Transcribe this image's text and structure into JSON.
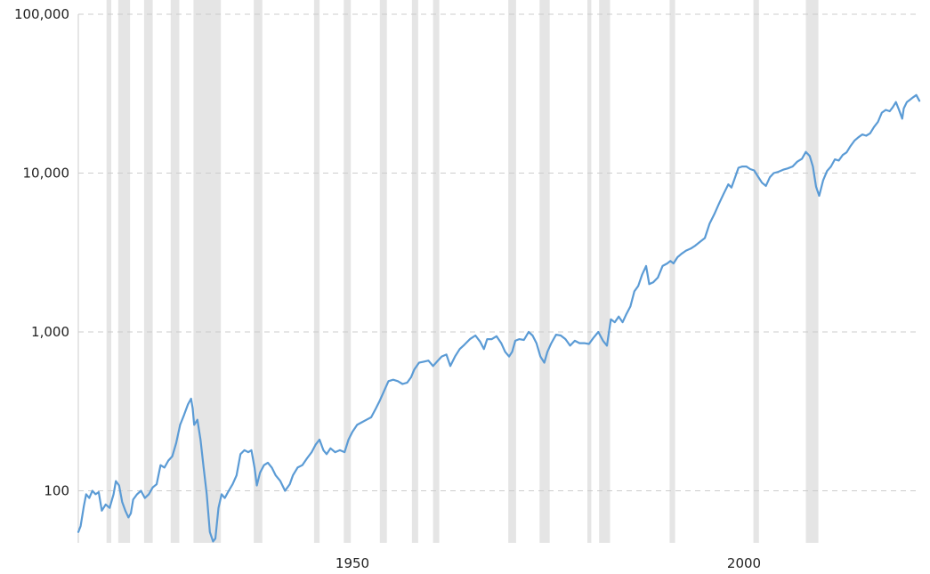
{
  "chart_data": {
    "type": "line",
    "title": "",
    "xlabel": "",
    "ylabel": "",
    "y_scale": "log",
    "ylim": [
      47,
      100000
    ],
    "xlim": [
      1915.0,
      2022.5
    ],
    "y_ticks": [
      100,
      1000,
      10000,
      100000
    ],
    "y_tick_labels": [
      "100",
      "1,000",
      "10,000",
      "100,000"
    ],
    "x_ticks": [
      1950,
      2000
    ],
    "x_tick_labels": [
      "1950",
      "2000"
    ],
    "grid": true,
    "legend": "none",
    "colors": {
      "line": "#5b9bd5",
      "recession": "#e5e5e5",
      "grid": "#cccccc"
    },
    "recessions": [
      [
        1918.6,
        1919.2
      ],
      [
        1920.1,
        1921.6
      ],
      [
        1923.4,
        1924.5
      ],
      [
        1926.8,
        1927.9
      ],
      [
        1929.7,
        1933.2
      ],
      [
        1937.4,
        1938.5
      ],
      [
        1945.1,
        1945.8
      ],
      [
        1948.9,
        1949.8
      ],
      [
        1953.5,
        1954.4
      ],
      [
        1957.6,
        1958.4
      ],
      [
        1960.3,
        1961.1
      ],
      [
        1969.9,
        1970.9
      ],
      [
        1973.9,
        1975.2
      ],
      [
        1980.0,
        1980.5
      ],
      [
        1981.5,
        1982.9
      ],
      [
        1990.5,
        1991.2
      ],
      [
        2001.2,
        2001.9
      ],
      [
        2007.9,
        2009.5
      ]
    ],
    "series": [
      {
        "x": [
          1915.0,
          1915.3,
          1915.7,
          1916.0,
          1916.4,
          1916.8,
          1917.2,
          1917.6,
          1918.0,
          1918.5,
          1919.0,
          1919.5,
          1919.8,
          1920.2,
          1920.6,
          1921.0,
          1921.4,
          1921.7,
          1922.0,
          1922.5,
          1923.0,
          1923.5,
          1924.0,
          1924.5,
          1925.0,
          1925.5,
          1926.0,
          1926.5,
          1927.0,
          1927.5,
          1928.0,
          1928.5,
          1929.0,
          1929.4,
          1929.6,
          1929.8,
          1930.2,
          1930.6,
          1931.0,
          1931.4,
          1931.8,
          1932.2,
          1932.5,
          1932.9,
          1933.3,
          1933.7,
          1934.2,
          1934.7,
          1935.2,
          1935.7,
          1936.2,
          1936.7,
          1937.1,
          1937.5,
          1937.8,
          1938.2,
          1938.7,
          1939.2,
          1939.7,
          1940.2,
          1940.8,
          1941.4,
          1942.0,
          1942.4,
          1943.0,
          1943.6,
          1944.2,
          1944.8,
          1945.3,
          1945.8,
          1946.3,
          1946.7,
          1947.2,
          1947.8,
          1948.4,
          1949.0,
          1949.5,
          1950.0,
          1950.6,
          1951.2,
          1951.8,
          1952.4,
          1953.0,
          1953.5,
          1954.0,
          1954.6,
          1955.2,
          1955.8,
          1956.4,
          1957.0,
          1957.5,
          1957.9,
          1958.5,
          1959.1,
          1959.7,
          1960.3,
          1960.8,
          1961.4,
          1962.0,
          1962.5,
          1963.1,
          1963.7,
          1964.3,
          1965.0,
          1965.7,
          1966.3,
          1966.8,
          1967.2,
          1967.8,
          1968.4,
          1969.0,
          1969.5,
          1970.0,
          1970.4,
          1970.8,
          1971.3,
          1971.9,
          1972.5,
          1973.0,
          1973.5,
          1974.0,
          1974.5,
          1974.9,
          1975.4,
          1976.0,
          1976.6,
          1977.2,
          1977.8,
          1978.4,
          1979.0,
          1979.6,
          1980.2,
          1980.8,
          1981.4,
          1982.0,
          1982.5,
          1983.0,
          1983.5,
          1984.0,
          1984.5,
          1985.0,
          1985.5,
          1986.0,
          1986.5,
          1987.0,
          1987.5,
          1987.9,
          1988.4,
          1989.0,
          1989.6,
          1990.2,
          1990.6,
          1991.0,
          1991.5,
          1992.0,
          1992.6,
          1993.2,
          1993.8,
          1994.4,
          1995.0,
          1995.6,
          1996.2,
          1996.8,
          1997.4,
          1998.0,
          1998.4,
          1998.8,
          1999.3,
          1999.8,
          2000.3,
          2000.8,
          2001.3,
          2001.8,
          2002.3,
          2002.8,
          2003.3,
          2003.8,
          2004.4,
          2005.0,
          2005.6,
          2006.2,
          2006.8,
          2007.4,
          2007.9,
          2008.4,
          2008.8,
          2009.2,
          2009.6,
          2010.1,
          2010.6,
          2011.1,
          2011.6,
          2012.1,
          2012.6,
          2013.1,
          2013.6,
          2014.1,
          2014.6,
          2015.1,
          2015.6,
          2016.1,
          2016.6,
          2017.1,
          2017.6,
          2018.1,
          2018.6,
          2019.0,
          2019.4,
          2019.8,
          2020.2,
          2020.4,
          2020.8,
          2021.2,
          2021.6,
          2022.0,
          2022.4
        ],
        "values": [
          55,
          60,
          80,
          95,
          90,
          100,
          95,
          98,
          75,
          82,
          78,
          95,
          115,
          108,
          85,
          75,
          68,
          72,
          88,
          95,
          100,
          90,
          95,
          105,
          110,
          145,
          140,
          155,
          165,
          200,
          260,
          300,
          350,
          380,
          330,
          260,
          280,
          210,
          140,
          95,
          55,
          48,
          50,
          78,
          95,
          90,
          100,
          110,
          125,
          170,
          180,
          175,
          180,
          140,
          108,
          130,
          145,
          150,
          140,
          125,
          115,
          100,
          110,
          125,
          140,
          145,
          160,
          175,
          195,
          210,
          180,
          170,
          185,
          175,
          180,
          175,
          210,
          235,
          260,
          270,
          280,
          290,
          330,
          370,
          420,
          490,
          500,
          490,
          470,
          480,
          520,
          580,
          640,
          650,
          660,
          610,
          650,
          700,
          720,
          610,
          700,
          780,
          830,
          900,
          950,
          870,
          780,
          900,
          900,
          940,
          850,
          750,
          700,
          750,
          880,
          900,
          890,
          1000,
          950,
          850,
          700,
          640,
          750,
          850,
          960,
          950,
          900,
          820,
          880,
          850,
          850,
          840,
          920,
          1000,
          880,
          820,
          1200,
          1150,
          1250,
          1150,
          1300,
          1450,
          1800,
          1950,
          2300,
          2600,
          2000,
          2050,
          2200,
          2600,
          2700,
          2800,
          2700,
          2950,
          3100,
          3250,
          3350,
          3500,
          3700,
          3900,
          4800,
          5500,
          6400,
          7400,
          8500,
          8100,
          9200,
          10800,
          11000,
          11000,
          10600,
          10400,
          9500,
          8700,
          8300,
          9400,
          10000,
          10200,
          10500,
          10700,
          11000,
          11800,
          12300,
          13600,
          12800,
          11000,
          8200,
          7200,
          9000,
          10300,
          11000,
          12200,
          12000,
          13000,
          13500,
          14800,
          16000,
          16800,
          17500,
          17200,
          17800,
          19500,
          21000,
          24000,
          25000,
          24500,
          26000,
          28000,
          25000,
          22000,
          25500,
          28000,
          29000,
          30000,
          31000,
          28500
        ]
      }
    ]
  }
}
